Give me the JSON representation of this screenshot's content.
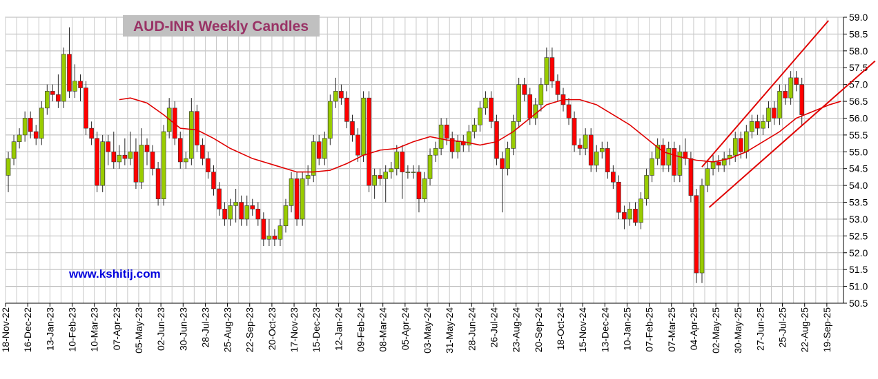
{
  "chart_data": {
    "type": "candlestick",
    "title": "AUD-INR  Weekly  Candles",
    "watermark": "www.kshitij.com",
    "categories": [
      "18-Nov-22",
      null,
      null,
      null,
      "16-Dec-22",
      null,
      null,
      null,
      "13-Jan-23",
      null,
      null,
      null,
      "10-Feb-23",
      null,
      null,
      null,
      "10-Mar-23",
      null,
      null,
      null,
      "07-Apr-23",
      null,
      null,
      null,
      "05-May-23",
      null,
      null,
      null,
      "02-Jun-23",
      null,
      null,
      null,
      "30-Jun-23",
      null,
      null,
      null,
      "28-Jul-23",
      null,
      null,
      null,
      "25-Aug-23",
      null,
      null,
      null,
      "22-Sep-23",
      null,
      null,
      null,
      "20-Oct-23",
      null,
      null,
      null,
      "17-Nov-23",
      null,
      null,
      null,
      "15-Dec-23",
      null,
      null,
      null,
      "12-Jan-24",
      null,
      null,
      null,
      "09-Feb-24",
      null,
      null,
      null,
      "08-Mar-24",
      null,
      null,
      null,
      "05-Apr-24",
      null,
      null,
      null,
      "03-May-24",
      null,
      null,
      null,
      "31-May-24",
      null,
      null,
      null,
      "28-Jun-24",
      null,
      null,
      null,
      "26-Jul-24",
      null,
      null,
      null,
      "23-Aug-24",
      null,
      null,
      null,
      "20-Sep-24",
      null,
      null,
      null,
      "18-Oct-24",
      null,
      null,
      null,
      "15-Nov-24",
      null,
      null,
      null,
      "13-Dec-24",
      null,
      null,
      null,
      "10-Jan-25",
      null,
      null,
      null,
      "07-Feb-25",
      null,
      null,
      null,
      "07-Mar-25",
      null,
      null,
      null,
      "04-Apr-25",
      null,
      null,
      null,
      "02-May-25",
      null,
      null,
      null,
      "30-May-25",
      null,
      null,
      null,
      "27-Jun-25",
      null,
      null,
      null,
      "25-Jul-25",
      null,
      null,
      null,
      "22-Aug-25",
      null,
      null,
      null,
      "19-Sep-25",
      null,
      null
    ],
    "open": [
      54.3,
      54.8,
      55.3,
      55.5,
      56.0,
      55.6,
      55.4,
      56.3,
      56.8,
      56.7,
      56.5,
      57.9,
      56.8,
      57.1,
      56.9,
      55.7,
      55.4,
      54.0,
      55.3,
      55.0,
      54.7,
      54.9,
      54.8,
      55.0,
      54.1,
      55.2,
      55.0,
      54.5,
      53.6,
      55.6,
      56.3,
      55.4,
      54.7,
      54.8,
      56.2,
      55.2,
      54.8,
      54.4,
      53.9,
      53.3,
      53.0,
      53.4,
      53.5,
      53.0,
      53.4,
      53.3,
      53.0,
      52.4,
      52.5,
      52.4,
      52.8,
      53.4,
      54.2,
      53.0,
      54.2,
      54.3,
      55.3,
      54.8,
      55.4,
      56.5,
      56.8,
      56.6,
      55.9,
      55.5,
      54.9,
      56.6,
      54.0,
      54.3,
      54.2,
      54.4,
      54.5,
      55.0,
      54.4,
      54.4,
      54.4,
      53.6,
      54.2,
      54.9,
      55.1,
      55.8,
      55.4,
      55.0,
      55.3,
      55.2,
      55.6,
      55.8,
      56.3,
      56.6,
      55.9,
      54.8,
      54.5,
      55.1,
      55.9,
      57.0,
      56.7,
      56.0,
      56.4,
      57.0,
      57.8,
      57.1,
      56.7,
      56.4,
      56.0,
      55.2,
      55.1,
      55.5,
      54.6,
      55.0,
      55.1,
      54.4,
      54.1,
      53.2,
      53.0,
      53.3,
      52.9,
      53.6,
      54.3,
      54.8,
      55.2,
      54.6,
      55.1,
      54.3,
      55.0,
      54.8,
      53.7,
      51.4,
      54.0,
      54.5,
      54.7,
      54.6,
      54.8,
      54.9,
      55.4,
      55.0,
      55.6,
      55.9,
      55.7,
      55.9,
      56.3,
      56.0,
      56.8,
      56.6,
      57.2,
      57.0,
      null,
      null,
      null,
      null,
      null,
      null,
      null
    ],
    "high": [
      55.0,
      55.5,
      55.7,
      56.2,
      56.2,
      55.8,
      56.5,
      57.0,
      57.0,
      57.3,
      58.1,
      58.7,
      57.6,
      57.3,
      57.1,
      55.9,
      55.6,
      55.5,
      55.5,
      55.6,
      55.2,
      55.4,
      55.6,
      55.4,
      55.7,
      55.4,
      55.2,
      54.7,
      55.8,
      56.6,
      56.5,
      55.6,
      55.0,
      56.6,
      56.4,
      55.4,
      55.0,
      54.6,
      54.1,
      53.5,
      53.6,
      53.9,
      53.7,
      53.7,
      53.6,
      53.5,
      53.2,
      53.0,
      52.7,
      53.0,
      53.6,
      54.4,
      54.4,
      54.4,
      54.6,
      55.5,
      55.5,
      55.6,
      56.7,
      57.2,
      57.0,
      56.8,
      56.1,
      55.7,
      56.8,
      56.8,
      54.5,
      54.5,
      54.6,
      54.7,
      55.2,
      55.2,
      54.6,
      54.6,
      54.6,
      54.4,
      55.1,
      55.3,
      56.0,
      56.0,
      55.6,
      55.5,
      55.5,
      55.8,
      56.0,
      56.5,
      56.8,
      56.8,
      56.1,
      55.0,
      55.3,
      56.1,
      57.2,
      57.2,
      56.9,
      56.6,
      57.2,
      58.1,
      58.1,
      57.3,
      56.9,
      56.6,
      56.2,
      55.4,
      55.7,
      55.7,
      55.2,
      55.3,
      55.3,
      54.6,
      54.3,
      53.4,
      53.5,
      53.5,
      53.8,
      54.5,
      55.0,
      55.4,
      55.4,
      55.3,
      55.3,
      55.2,
      55.4,
      55.0,
      53.9,
      54.2,
      54.7,
      54.9,
      54.9,
      55.0,
      55.1,
      55.6,
      55.6,
      55.8,
      56.1,
      56.1,
      56.1,
      56.5,
      56.5,
      57.0,
      57.0,
      57.4,
      57.4,
      57.2,
      null,
      null,
      null,
      null,
      null,
      null,
      null
    ],
    "low": [
      53.8,
      54.6,
      55.1,
      55.3,
      55.4,
      55.2,
      55.2,
      56.1,
      56.5,
      56.3,
      56.3,
      56.6,
      56.6,
      56.5,
      55.5,
      55.2,
      53.8,
      53.8,
      54.6,
      54.5,
      54.5,
      54.6,
      54.6,
      53.9,
      53.9,
      54.6,
      54.3,
      53.4,
      53.4,
      55.4,
      55.2,
      54.5,
      54.5,
      54.6,
      55.0,
      54.6,
      54.2,
      53.7,
      53.1,
      52.8,
      52.8,
      52.9,
      52.8,
      52.8,
      53.1,
      52.8,
      52.2,
      52.2,
      52.2,
      52.2,
      52.6,
      53.2,
      52.8,
      52.8,
      54.0,
      54.1,
      54.6,
      54.6,
      55.2,
      56.3,
      56.4,
      55.7,
      55.3,
      54.7,
      54.7,
      53.8,
      53.6,
      54.0,
      53.5,
      54.2,
      54.3,
      53.6,
      54.2,
      54.2,
      53.2,
      53.5,
      54.0,
      54.7,
      54.9,
      55.2,
      54.8,
      54.8,
      55.0,
      55.0,
      55.4,
      55.6,
      56.1,
      55.7,
      54.6,
      53.2,
      54.3,
      54.9,
      55.7,
      56.5,
      55.8,
      55.8,
      56.2,
      56.8,
      56.9,
      56.5,
      56.2,
      55.8,
      55.0,
      54.9,
      54.9,
      54.4,
      54.4,
      54.8,
      54.2,
      53.9,
      53.0,
      52.7,
      52.8,
      52.8,
      52.7,
      53.4,
      54.1,
      54.6,
      54.4,
      54.4,
      54.1,
      54.1,
      54.6,
      53.5,
      51.1,
      51.1,
      53.8,
      54.3,
      54.4,
      54.4,
      54.6,
      54.7,
      54.8,
      54.8,
      55.4,
      55.5,
      55.5,
      55.7,
      55.8,
      55.8,
      56.4,
      56.4,
      56.8,
      55.8,
      null,
      null,
      null,
      null,
      null,
      null,
      null
    ],
    "close": [
      54.8,
      55.3,
      55.5,
      56.0,
      55.6,
      55.4,
      56.3,
      56.8,
      56.7,
      56.5,
      57.9,
      56.8,
      57.1,
      56.9,
      55.7,
      55.4,
      54.0,
      55.3,
      55.0,
      54.7,
      54.9,
      54.8,
      55.0,
      54.1,
      55.2,
      55.0,
      54.5,
      53.6,
      55.6,
      56.3,
      55.4,
      54.7,
      54.8,
      56.2,
      55.2,
      54.8,
      54.4,
      53.9,
      53.3,
      53.0,
      53.4,
      53.5,
      53.0,
      53.4,
      53.3,
      53.0,
      52.4,
      52.5,
      52.4,
      52.8,
      53.4,
      54.2,
      53.0,
      54.2,
      54.3,
      55.3,
      54.8,
      55.4,
      56.5,
      56.8,
      56.6,
      55.9,
      55.5,
      54.9,
      56.6,
      54.0,
      54.3,
      54.2,
      54.4,
      54.5,
      55.0,
      54.4,
      54.4,
      54.4,
      53.6,
      54.2,
      54.9,
      55.1,
      55.8,
      55.4,
      55.0,
      55.3,
      55.2,
      55.6,
      55.8,
      56.3,
      56.6,
      55.9,
      54.8,
      54.5,
      55.1,
      55.9,
      57.0,
      56.7,
      56.0,
      56.4,
      57.0,
      57.8,
      57.1,
      56.7,
      56.4,
      56.0,
      55.2,
      55.1,
      55.5,
      54.6,
      55.0,
      55.1,
      54.4,
      54.1,
      53.2,
      53.0,
      53.3,
      52.9,
      53.6,
      54.3,
      54.8,
      55.2,
      54.6,
      55.1,
      54.3,
      55.0,
      54.8,
      53.7,
      51.4,
      54.0,
      54.5,
      54.7,
      54.6,
      54.8,
      54.9,
      55.4,
      55.0,
      55.6,
      55.9,
      55.7,
      55.9,
      56.3,
      56.0,
      56.8,
      56.6,
      57.2,
      57.0,
      56.1,
      null,
      null,
      null,
      null,
      null,
      null,
      null
    ],
    "up_color": "#99cc00",
    "down_color": "#ff0000",
    "moving_average": {
      "color": "#e00000",
      "x": [
        20,
        22,
        25,
        28,
        31,
        34,
        37,
        40,
        44,
        48,
        52,
        55,
        58,
        61,
        64,
        67,
        70,
        73,
        76,
        79,
        82,
        85,
        88,
        91,
        94,
        97,
        100,
        103,
        106,
        109,
        112,
        115,
        118,
        121,
        124,
        127,
        130,
        133,
        136,
        139,
        142,
        145,
        148,
        150
      ],
      "values": [
        56.55,
        56.6,
        56.45,
        56.1,
        55.7,
        55.65,
        55.4,
        55.1,
        54.8,
        54.6,
        54.4,
        54.4,
        54.45,
        54.65,
        54.9,
        55.05,
        55.1,
        55.3,
        55.45,
        55.35,
        55.3,
        55.2,
        55.3,
        55.6,
        56.0,
        56.4,
        56.55,
        56.55,
        56.4,
        56.1,
        55.8,
        55.4,
        55.0,
        54.85,
        54.75,
        54.7,
        54.8,
        55.0,
        55.3,
        55.6,
        56.0,
        56.2,
        56.4,
        56.5
      ]
    },
    "trendlines": [
      {
        "color": "#e00000",
        "x": [
          125,
          147.8
        ],
        "values": [
          54.55,
          58.9
        ]
      },
      {
        "color": "#e00000",
        "x": [
          126.3,
          156.2
        ],
        "values": [
          53.35,
          57.7
        ]
      }
    ],
    "ylim": [
      50.5,
      59
    ],
    "yticks": [
      50.5,
      {
        "value": 51,
        "label": "51.0"
      },
      51.5,
      {
        "value": 52,
        "label": "52.0"
      },
      52.5,
      {
        "value": 53,
        "label": "53.0"
      },
      53.5,
      {
        "value": 54,
        "label": "54.0"
      },
      54.5,
      {
        "value": 55,
        "label": "55.0"
      },
      55.5,
      {
        "value": 56,
        "label": "56.0"
      },
      56.5,
      {
        "value": 57,
        "label": "57.0"
      },
      57.5,
      {
        "value": 58,
        "label": "58.0"
      },
      58.5,
      {
        "value": 59,
        "label": "59.0"
      }
    ],
    "grid": true
  }
}
